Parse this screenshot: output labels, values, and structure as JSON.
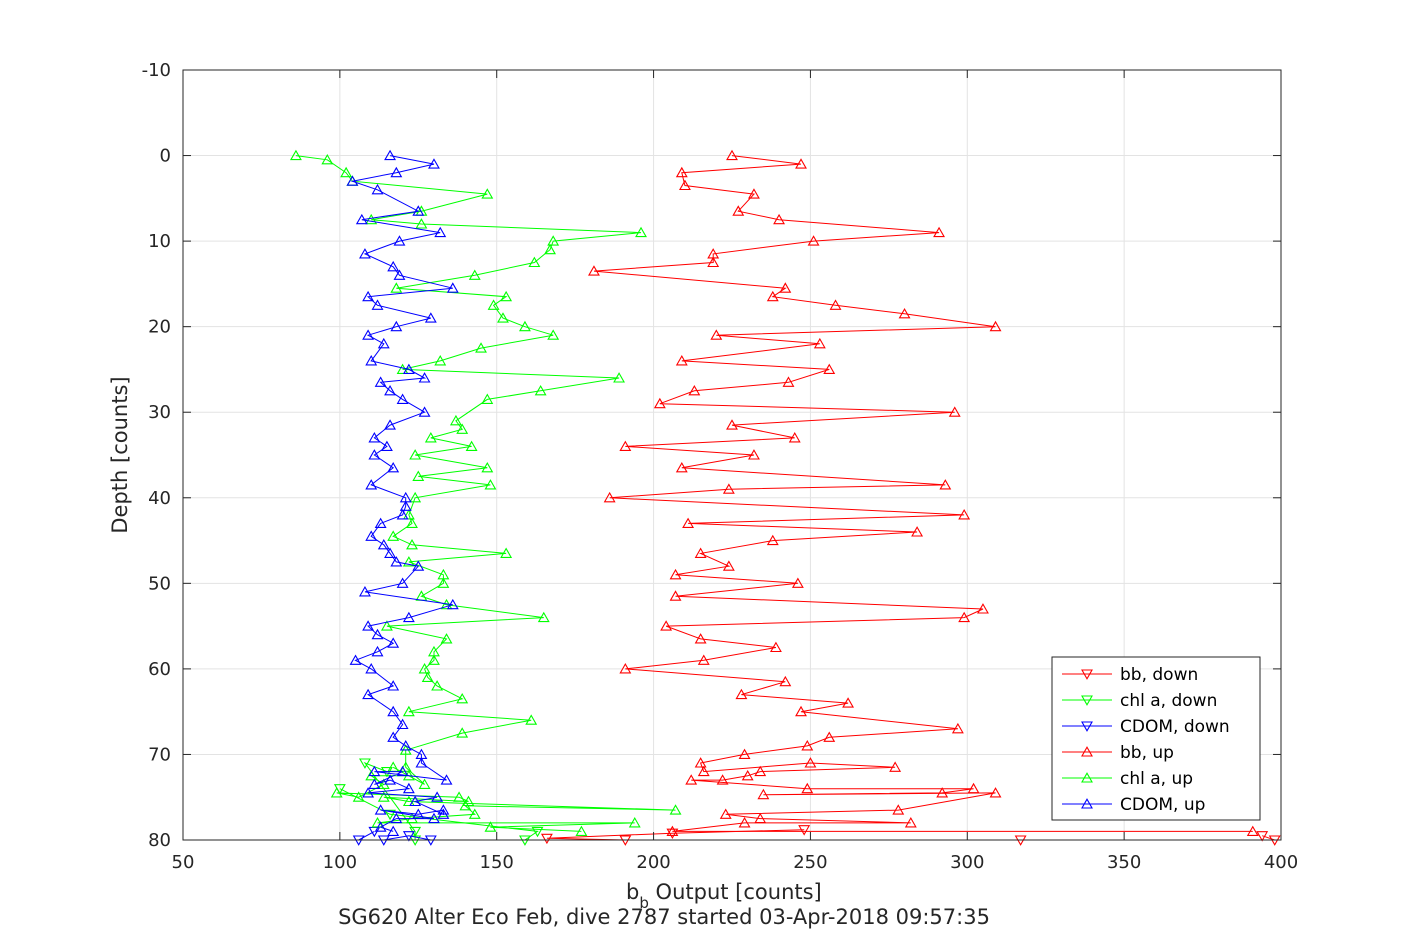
{
  "chart_data": {
    "type": "line",
    "title": "",
    "xlabel_main": "b",
    "xlabel_sub": "b",
    "xlabel_rest": " Output [counts]",
    "ylabel": "Depth [counts]",
    "caption": "SG620 Alter Eco Feb, dive 2787 started 03-Apr-2018 09:57:35",
    "xlim": [
      50,
      400
    ],
    "ylim": [
      -10,
      80
    ],
    "y_reversed": true,
    "grid": true,
    "xticks": [
      50,
      100,
      150,
      200,
      250,
      300,
      350,
      400
    ],
    "yticks": [
      -10,
      0,
      10,
      20,
      30,
      40,
      50,
      60,
      70,
      80
    ],
    "legend_position": "bottom-right",
    "series": [
      {
        "name": "bb, down",
        "color": "#ff0000",
        "marker": "triangle-down",
        "points": [
          [
            394,
            79.5
          ],
          [
            398,
            80
          ],
          [
            317,
            80
          ],
          [
            191,
            80
          ],
          [
            166,
            79.8
          ],
          [
            206,
            79.2
          ],
          [
            248,
            78.8
          ]
        ]
      },
      {
        "name": "chl a, down",
        "color": "#00ff00",
        "marker": "triangle-down",
        "points": [
          [
            100,
            74
          ],
          [
            116,
            77
          ],
          [
            163,
            79
          ],
          [
            159,
            80
          ],
          [
            124,
            80
          ],
          [
            124,
            79
          ],
          [
            108,
            71
          ],
          [
            115,
            72
          ]
        ]
      },
      {
        "name": "CDOM, down",
        "color": "#0000ff",
        "marker": "triangle-down",
        "points": [
          [
            111,
            79
          ],
          [
            106,
            80
          ],
          [
            114,
            80
          ],
          [
            122,
            79.5
          ],
          [
            129,
            80
          ]
        ]
      },
      {
        "name": "bb, up",
        "color": "#ff0000",
        "marker": "triangle-up",
        "points": [
          [
            391,
            79
          ],
          [
            206,
            79
          ],
          [
            229,
            78
          ],
          [
            282,
            78
          ],
          [
            234,
            77.5
          ],
          [
            223,
            77
          ],
          [
            278,
            76.5
          ],
          [
            309,
            74.5
          ],
          [
            235,
            74.7
          ],
          [
            292,
            74.5
          ],
          [
            302,
            74
          ],
          [
            249,
            74
          ],
          [
            212,
            73
          ],
          [
            222,
            73
          ],
          [
            230,
            72.5
          ],
          [
            234,
            72
          ],
          [
            277,
            71.5
          ],
          [
            250,
            71
          ],
          [
            216,
            72
          ],
          [
            215,
            71
          ],
          [
            229,
            70
          ],
          [
            249,
            69
          ],
          [
            256,
            68
          ],
          [
            297,
            67
          ],
          [
            247,
            65
          ],
          [
            262,
            64
          ],
          [
            228,
            63
          ],
          [
            242,
            61.5
          ],
          [
            191,
            60
          ],
          [
            216,
            59
          ],
          [
            239,
            57.5
          ],
          [
            215,
            56.5
          ],
          [
            204,
            55
          ],
          [
            299,
            54
          ],
          [
            305,
            53
          ],
          [
            207,
            51.5
          ],
          [
            246,
            50
          ],
          [
            207,
            49
          ],
          [
            224,
            48
          ],
          [
            215,
            46.5
          ],
          [
            238,
            45
          ],
          [
            284,
            44
          ],
          [
            211,
            43
          ],
          [
            299,
            42
          ],
          [
            186,
            40
          ],
          [
            224,
            39
          ],
          [
            293,
            38.5
          ],
          [
            209,
            36.5
          ],
          [
            232,
            35
          ],
          [
            191,
            34
          ],
          [
            245,
            33
          ],
          [
            225,
            31.5
          ],
          [
            296,
            30
          ],
          [
            202,
            29
          ],
          [
            213,
            27.5
          ],
          [
            243,
            26.5
          ],
          [
            256,
            25
          ],
          [
            209,
            24
          ],
          [
            253,
            22
          ],
          [
            220,
            21
          ],
          [
            309,
            20
          ],
          [
            280,
            18.5
          ],
          [
            258,
            17.5
          ],
          [
            238,
            16.5
          ],
          [
            242,
            15.5
          ],
          [
            181,
            13.5
          ],
          [
            219,
            12.5
          ],
          [
            219,
            11.5
          ],
          [
            251,
            10
          ],
          [
            291,
            9
          ],
          [
            240,
            7.5
          ],
          [
            227,
            6.5
          ],
          [
            232,
            4.5
          ],
          [
            210,
            3.5
          ],
          [
            209,
            2
          ],
          [
            247,
            1
          ],
          [
            225,
            0
          ]
        ]
      },
      {
        "name": "chl a, up",
        "color": "#00ff00",
        "marker": "triangle-up",
        "points": [
          [
            177,
            79
          ],
          [
            148,
            78.5
          ],
          [
            194,
            78
          ],
          [
            112,
            78
          ],
          [
            123,
            77.5
          ],
          [
            143,
            77
          ],
          [
            140,
            76
          ],
          [
            207,
            76.5
          ],
          [
            122,
            75.5
          ],
          [
            114,
            75
          ],
          [
            141,
            75.5
          ],
          [
            138,
            75
          ],
          [
            99,
            74.5
          ],
          [
            106,
            75
          ],
          [
            114,
            73.5
          ],
          [
            110,
            72.5
          ],
          [
            122,
            72.5
          ],
          [
            117,
            71.5
          ],
          [
            127,
            73.5
          ],
          [
            121,
            71.5
          ],
          [
            121,
            69.5
          ],
          [
            139,
            67.5
          ],
          [
            161,
            66
          ],
          [
            122,
            65
          ],
          [
            139,
            63.5
          ],
          [
            131,
            62
          ],
          [
            128,
            61
          ],
          [
            127,
            60
          ],
          [
            130,
            59
          ],
          [
            130,
            58
          ],
          [
            134,
            56.5
          ],
          [
            115,
            55
          ],
          [
            165,
            54
          ],
          [
            134,
            52.5
          ],
          [
            126,
            51.5
          ],
          [
            133,
            50
          ],
          [
            133,
            49
          ],
          [
            122,
            47.5
          ],
          [
            153,
            46.5
          ],
          [
            123,
            45.5
          ],
          [
            117,
            44.5
          ],
          [
            123,
            43
          ],
          [
            122,
            42
          ],
          [
            124,
            40
          ],
          [
            148,
            38.5
          ],
          [
            125,
            37.5
          ],
          [
            147,
            36.5
          ],
          [
            124,
            35
          ],
          [
            142,
            34
          ],
          [
            129,
            33
          ],
          [
            139,
            32
          ],
          [
            137,
            31
          ],
          [
            147,
            28.5
          ],
          [
            164,
            27.5
          ],
          [
            189,
            26
          ],
          [
            120,
            25
          ],
          [
            132,
            24
          ],
          [
            145,
            22.5
          ],
          [
            168,
            21
          ],
          [
            159,
            20
          ],
          [
            152,
            19
          ],
          [
            149,
            17.5
          ],
          [
            153,
            16.5
          ],
          [
            118,
            15.5
          ],
          [
            143,
            14
          ],
          [
            162,
            12.5
          ],
          [
            167,
            11
          ],
          [
            168,
            10
          ],
          [
            196,
            9
          ],
          [
            126,
            8
          ],
          [
            110,
            7.5
          ],
          [
            126,
            6.5
          ],
          [
            147,
            4.5
          ],
          [
            104,
            3
          ],
          [
            102,
            2
          ],
          [
            96,
            0.5
          ],
          [
            86,
            0
          ]
        ]
      },
      {
        "name": "CDOM, up",
        "color": "#0000ff",
        "marker": "triangle-up",
        "points": [
          [
            117,
            79
          ],
          [
            113,
            78.5
          ],
          [
            118,
            77.5
          ],
          [
            130,
            77.5
          ],
          [
            113,
            76.5
          ],
          [
            125,
            77
          ],
          [
            133,
            76.5
          ],
          [
            133,
            77
          ],
          [
            124,
            75.5
          ],
          [
            131,
            75
          ],
          [
            109,
            74.5
          ],
          [
            122,
            74
          ],
          [
            116,
            73
          ],
          [
            111,
            73.5
          ],
          [
            120,
            72
          ],
          [
            111,
            72
          ],
          [
            134,
            73
          ],
          [
            126,
            71
          ],
          [
            126,
            70
          ],
          [
            121,
            69
          ],
          [
            117,
            68
          ],
          [
            120,
            66.5
          ],
          [
            117,
            65
          ],
          [
            109,
            63
          ],
          [
            117,
            62
          ],
          [
            110,
            60
          ],
          [
            105,
            59
          ],
          [
            112,
            58
          ],
          [
            117,
            57
          ],
          [
            112,
            56
          ],
          [
            109,
            55
          ],
          [
            122,
            54
          ],
          [
            136,
            52.5
          ],
          [
            108,
            51
          ],
          [
            120,
            50
          ],
          [
            125,
            48
          ],
          [
            118,
            47.5
          ],
          [
            116,
            46.5
          ],
          [
            114,
            45.5
          ],
          [
            110,
            44.5
          ],
          [
            113,
            43
          ],
          [
            120,
            42
          ],
          [
            121,
            41
          ],
          [
            121,
            40
          ],
          [
            110,
            38.5
          ],
          [
            117,
            36.5
          ],
          [
            111,
            35
          ],
          [
            115,
            34
          ],
          [
            111,
            33
          ],
          [
            116,
            31.5
          ],
          [
            127,
            30
          ],
          [
            120,
            28.5
          ],
          [
            116,
            27.5
          ],
          [
            113,
            26.5
          ],
          [
            127,
            26
          ],
          [
            122,
            25
          ],
          [
            110,
            24
          ],
          [
            114,
            22
          ],
          [
            109,
            21
          ],
          [
            118,
            20
          ],
          [
            129,
            19
          ],
          [
            112,
            17.5
          ],
          [
            109,
            16.5
          ],
          [
            136,
            15.5
          ],
          [
            119,
            14
          ],
          [
            117,
            13
          ],
          [
            108,
            11.5
          ],
          [
            119,
            10
          ],
          [
            132,
            9
          ],
          [
            107,
            7.5
          ],
          [
            125,
            6.5
          ],
          [
            112,
            4
          ],
          [
            104,
            3
          ],
          [
            118,
            2
          ],
          [
            130,
            1
          ],
          [
            116,
            0
          ]
        ]
      }
    ]
  }
}
